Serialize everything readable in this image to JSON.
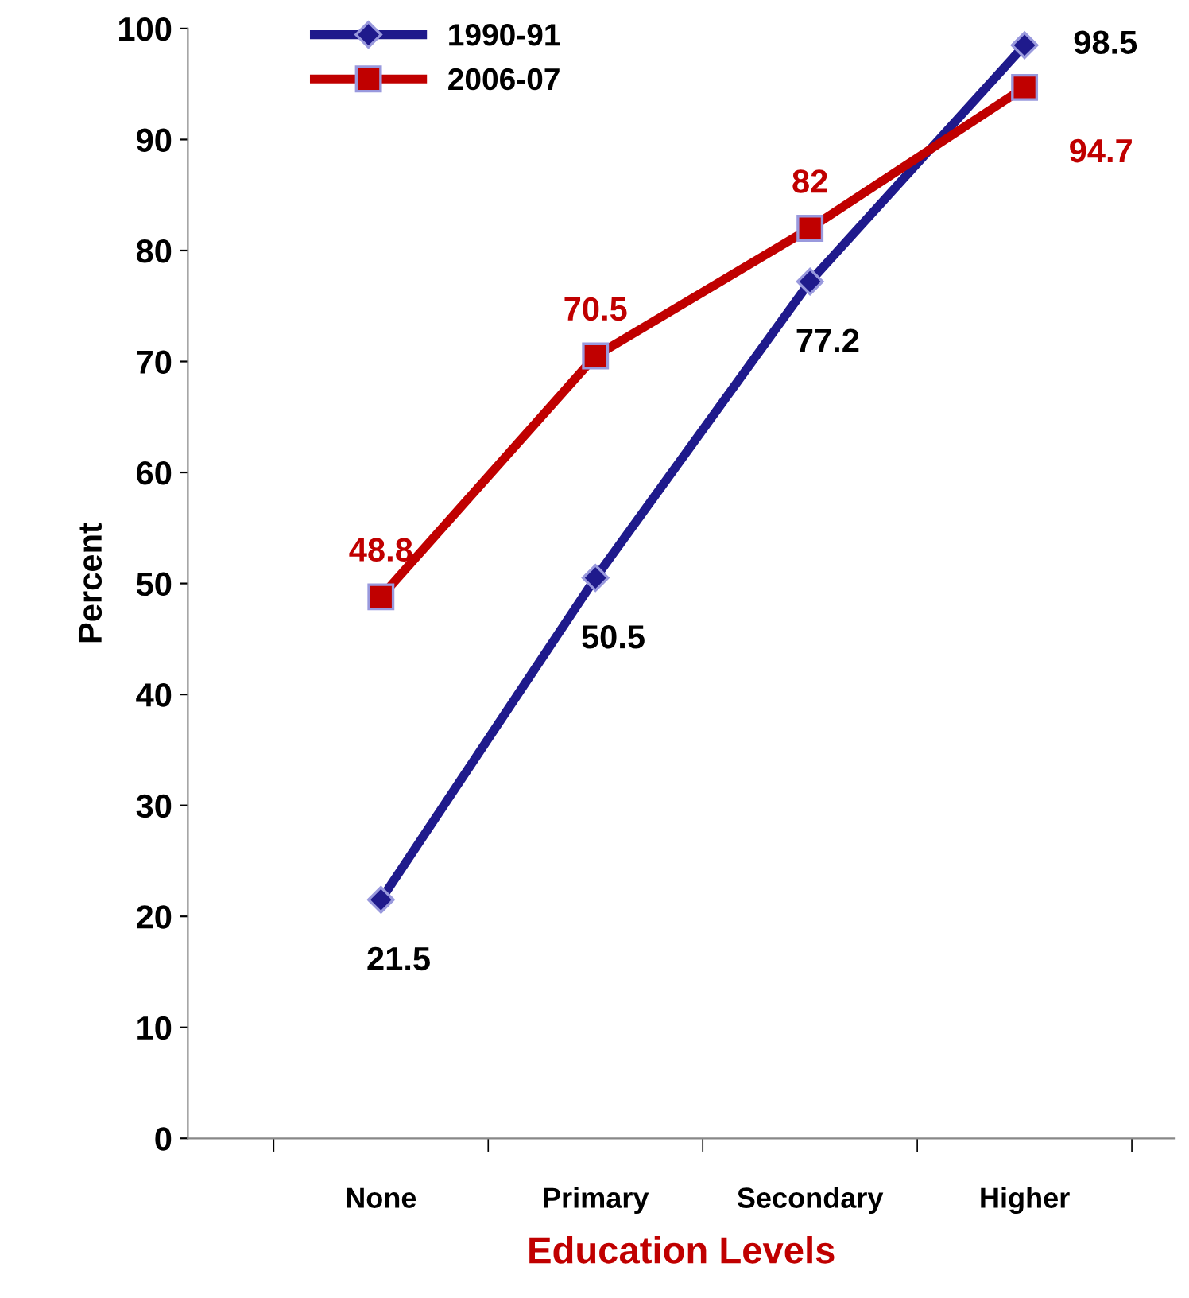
{
  "chart_data": {
    "type": "line",
    "xlabel": "Education Levels",
    "ylabel": "Percent",
    "categories": [
      "None",
      "Primary",
      "Secondary",
      "Higher"
    ],
    "series": [
      {
        "name": "1990-91",
        "color": "#1f1a8c",
        "values": [
          21.5,
          50.5,
          77.2,
          98.5
        ],
        "marker": "diamond"
      },
      {
        "name": "2006-07",
        "color": "#c00000",
        "values": [
          48.8,
          70.5,
          82,
          94.7
        ],
        "marker": "square"
      }
    ],
    "data_labels": true,
    "ylim": [
      0,
      100
    ],
    "yticks": [
      0,
      10,
      20,
      30,
      40,
      50,
      60,
      70,
      80,
      90,
      100
    ],
    "grid": false,
    "legend": "top left",
    "line_style": "solid"
  }
}
